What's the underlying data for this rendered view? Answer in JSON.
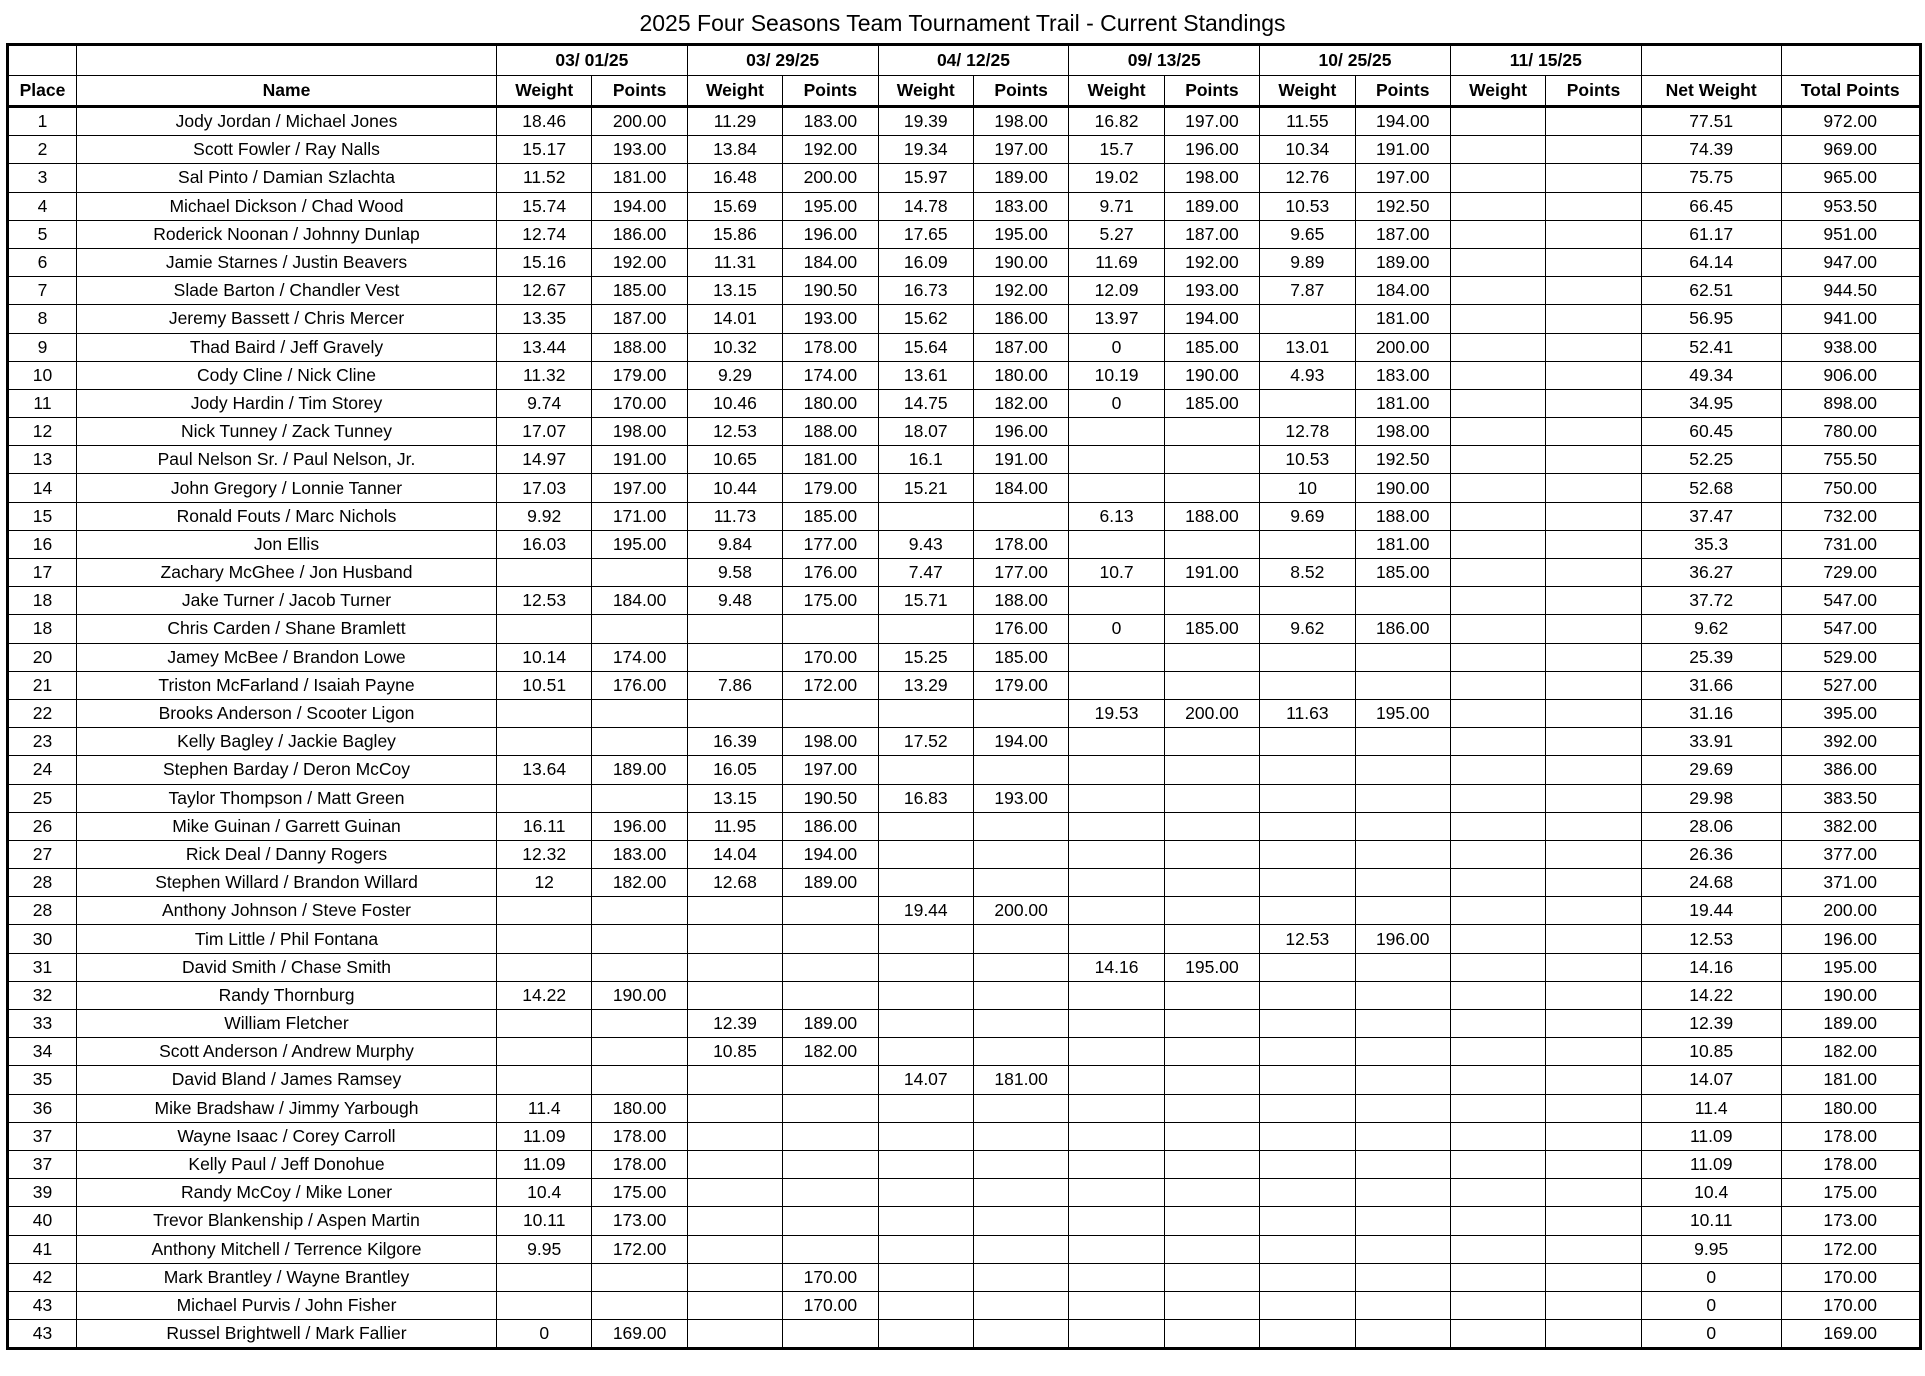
{
  "title": "2025 Four Seasons Team Tournament Trail - Current Standings",
  "events": [
    "03/ 01/25",
    "03/ 29/25",
    "04/ 12/25",
    "09/ 13/25",
    "10/ 25/25",
    "11/ 15/25"
  ],
  "headers": {
    "place": "Place",
    "name": "Name",
    "weight": "Weight",
    "points": "Points",
    "net_weight": "Net Weight",
    "total_points": "Total Points"
  },
  "rows": [
    [
      "1",
      "Jody Jordan / Michael Jones",
      "18.46",
      "200.00",
      "11.29",
      "183.00",
      "19.39",
      "198.00",
      "16.82",
      "197.00",
      "11.55",
      "194.00",
      "",
      "",
      "77.51",
      "972.00"
    ],
    [
      "2",
      "Scott Fowler / Ray Nalls",
      "15.17",
      "193.00",
      "13.84",
      "192.00",
      "19.34",
      "197.00",
      "15.7",
      "196.00",
      "10.34",
      "191.00",
      "",
      "",
      "74.39",
      "969.00"
    ],
    [
      "3",
      "Sal Pinto / Damian Szlachta",
      "11.52",
      "181.00",
      "16.48",
      "200.00",
      "15.97",
      "189.00",
      "19.02",
      "198.00",
      "12.76",
      "197.00",
      "",
      "",
      "75.75",
      "965.00"
    ],
    [
      "4",
      "Michael Dickson / Chad Wood",
      "15.74",
      "194.00",
      "15.69",
      "195.00",
      "14.78",
      "183.00",
      "9.71",
      "189.00",
      "10.53",
      "192.50",
      "",
      "",
      "66.45",
      "953.50"
    ],
    [
      "5",
      "Roderick Noonan / Johnny Dunlap",
      "12.74",
      "186.00",
      "15.86",
      "196.00",
      "17.65",
      "195.00",
      "5.27",
      "187.00",
      "9.65",
      "187.00",
      "",
      "",
      "61.17",
      "951.00"
    ],
    [
      "6",
      "Jamie Starnes / Justin Beavers",
      "15.16",
      "192.00",
      "11.31",
      "184.00",
      "16.09",
      "190.00",
      "11.69",
      "192.00",
      "9.89",
      "189.00",
      "",
      "",
      "64.14",
      "947.00"
    ],
    [
      "7",
      "Slade Barton / Chandler Vest",
      "12.67",
      "185.00",
      "13.15",
      "190.50",
      "16.73",
      "192.00",
      "12.09",
      "193.00",
      "7.87",
      "184.00",
      "",
      "",
      "62.51",
      "944.50"
    ],
    [
      "8",
      "Jeremy Bassett / Chris Mercer",
      "13.35",
      "187.00",
      "14.01",
      "193.00",
      "15.62",
      "186.00",
      "13.97",
      "194.00",
      "",
      "181.00",
      "",
      "",
      "56.95",
      "941.00"
    ],
    [
      "9",
      "Thad Baird / Jeff Gravely",
      "13.44",
      "188.00",
      "10.32",
      "178.00",
      "15.64",
      "187.00",
      "0",
      "185.00",
      "13.01",
      "200.00",
      "",
      "",
      "52.41",
      "938.00"
    ],
    [
      "10",
      "Cody Cline / Nick Cline",
      "11.32",
      "179.00",
      "9.29",
      "174.00",
      "13.61",
      "180.00",
      "10.19",
      "190.00",
      "4.93",
      "183.00",
      "",
      "",
      "49.34",
      "906.00"
    ],
    [
      "11",
      "Jody Hardin / Tim Storey",
      "9.74",
      "170.00",
      "10.46",
      "180.00",
      "14.75",
      "182.00",
      "0",
      "185.00",
      "",
      "181.00",
      "",
      "",
      "34.95",
      "898.00"
    ],
    [
      "12",
      "Nick Tunney / Zack Tunney",
      "17.07",
      "198.00",
      "12.53",
      "188.00",
      "18.07",
      "196.00",
      "",
      "",
      "12.78",
      "198.00",
      "",
      "",
      "60.45",
      "780.00"
    ],
    [
      "13",
      "Paul Nelson Sr. / Paul Nelson, Jr.",
      "14.97",
      "191.00",
      "10.65",
      "181.00",
      "16.1",
      "191.00",
      "",
      "",
      "10.53",
      "192.50",
      "",
      "",
      "52.25",
      "755.50"
    ],
    [
      "14",
      "John Gregory / Lonnie Tanner",
      "17.03",
      "197.00",
      "10.44",
      "179.00",
      "15.21",
      "184.00",
      "",
      "",
      "10",
      "190.00",
      "",
      "",
      "52.68",
      "750.00"
    ],
    [
      "15",
      "Ronald Fouts / Marc Nichols",
      "9.92",
      "171.00",
      "11.73",
      "185.00",
      "",
      "",
      "6.13",
      "188.00",
      "9.69",
      "188.00",
      "",
      "",
      "37.47",
      "732.00"
    ],
    [
      "16",
      "Jon Ellis",
      "16.03",
      "195.00",
      "9.84",
      "177.00",
      "9.43",
      "178.00",
      "",
      "",
      "",
      "181.00",
      "",
      "",
      "35.3",
      "731.00"
    ],
    [
      "17",
      "Zachary McGhee / Jon Husband",
      "",
      "",
      "9.58",
      "176.00",
      "7.47",
      "177.00",
      "10.7",
      "191.00",
      "8.52",
      "185.00",
      "",
      "",
      "36.27",
      "729.00"
    ],
    [
      "18",
      "Jake Turner / Jacob Turner",
      "12.53",
      "184.00",
      "9.48",
      "175.00",
      "15.71",
      "188.00",
      "",
      "",
      "",
      "",
      "",
      "",
      "37.72",
      "547.00"
    ],
    [
      "18",
      "Chris Carden / Shane Bramlett",
      "",
      "",
      "",
      "",
      "",
      "176.00",
      "0",
      "185.00",
      "9.62",
      "186.00",
      "",
      "",
      "9.62",
      "547.00"
    ],
    [
      "20",
      "Jamey McBee / Brandon Lowe",
      "10.14",
      "174.00",
      "",
      "170.00",
      "15.25",
      "185.00",
      "",
      "",
      "",
      "",
      "",
      "",
      "25.39",
      "529.00"
    ],
    [
      "21",
      "Triston McFarland / Isaiah Payne",
      "10.51",
      "176.00",
      "7.86",
      "172.00",
      "13.29",
      "179.00",
      "",
      "",
      "",
      "",
      "",
      "",
      "31.66",
      "527.00"
    ],
    [
      "22",
      "Brooks Anderson / Scooter Ligon",
      "",
      "",
      "",
      "",
      "",
      "",
      "19.53",
      "200.00",
      "11.63",
      "195.00",
      "",
      "",
      "31.16",
      "395.00"
    ],
    [
      "23",
      "Kelly Bagley / Jackie Bagley",
      "",
      "",
      "16.39",
      "198.00",
      "17.52",
      "194.00",
      "",
      "",
      "",
      "",
      "",
      "",
      "33.91",
      "392.00"
    ],
    [
      "24",
      "Stephen Barday / Deron McCoy",
      "13.64",
      "189.00",
      "16.05",
      "197.00",
      "",
      "",
      "",
      "",
      "",
      "",
      "",
      "",
      "29.69",
      "386.00"
    ],
    [
      "25",
      "Taylor Thompson / Matt Green",
      "",
      "",
      "13.15",
      "190.50",
      "16.83",
      "193.00",
      "",
      "",
      "",
      "",
      "",
      "",
      "29.98",
      "383.50"
    ],
    [
      "26",
      "Mike Guinan / Garrett Guinan",
      "16.11",
      "196.00",
      "11.95",
      "186.00",
      "",
      "",
      "",
      "",
      "",
      "",
      "",
      "",
      "28.06",
      "382.00"
    ],
    [
      "27",
      "Rick Deal / Danny Rogers",
      "12.32",
      "183.00",
      "14.04",
      "194.00",
      "",
      "",
      "",
      "",
      "",
      "",
      "",
      "",
      "26.36",
      "377.00"
    ],
    [
      "28",
      "Stephen Willard / Brandon Willard",
      "12",
      "182.00",
      "12.68",
      "189.00",
      "",
      "",
      "",
      "",
      "",
      "",
      "",
      "",
      "24.68",
      "371.00"
    ],
    [
      "28",
      "Anthony Johnson / Steve Foster",
      "",
      "",
      "",
      "",
      "19.44",
      "200.00",
      "",
      "",
      "",
      "",
      "",
      "",
      "19.44",
      "200.00"
    ],
    [
      "30",
      "Tim Little / Phil Fontana",
      "",
      "",
      "",
      "",
      "",
      "",
      "",
      "",
      "12.53",
      "196.00",
      "",
      "",
      "12.53",
      "196.00"
    ],
    [
      "31",
      "David Smith / Chase Smith",
      "",
      "",
      "",
      "",
      "",
      "",
      "14.16",
      "195.00",
      "",
      "",
      "",
      "",
      "14.16",
      "195.00"
    ],
    [
      "32",
      "Randy Thornburg",
      "14.22",
      "190.00",
      "",
      "",
      "",
      "",
      "",
      "",
      "",
      "",
      "",
      "",
      "14.22",
      "190.00"
    ],
    [
      "33",
      "William Fletcher",
      "",
      "",
      "12.39",
      "189.00",
      "",
      "",
      "",
      "",
      "",
      "",
      "",
      "",
      "12.39",
      "189.00"
    ],
    [
      "34",
      "Scott Anderson / Andrew Murphy",
      "",
      "",
      "10.85",
      "182.00",
      "",
      "",
      "",
      "",
      "",
      "",
      "",
      "",
      "10.85",
      "182.00"
    ],
    [
      "35",
      "David Bland / James Ramsey",
      "",
      "",
      "",
      "",
      "14.07",
      "181.00",
      "",
      "",
      "",
      "",
      "",
      "",
      "14.07",
      "181.00"
    ],
    [
      "36",
      "Mike Bradshaw / Jimmy Yarbough",
      "11.4",
      "180.00",
      "",
      "",
      "",
      "",
      "",
      "",
      "",
      "",
      "",
      "",
      "11.4",
      "180.00"
    ],
    [
      "37",
      "Wayne Isaac / Corey Carroll",
      "11.09",
      "178.00",
      "",
      "",
      "",
      "",
      "",
      "",
      "",
      "",
      "",
      "",
      "11.09",
      "178.00"
    ],
    [
      "37",
      "Kelly Paul / Jeff Donohue",
      "11.09",
      "178.00",
      "",
      "",
      "",
      "",
      "",
      "",
      "",
      "",
      "",
      "",
      "11.09",
      "178.00"
    ],
    [
      "39",
      "Randy McCoy / Mike Loner",
      "10.4",
      "175.00",
      "",
      "",
      "",
      "",
      "",
      "",
      "",
      "",
      "",
      "",
      "10.4",
      "175.00"
    ],
    [
      "40",
      "Trevor Blankenship / Aspen Martin",
      "10.11",
      "173.00",
      "",
      "",
      "",
      "",
      "",
      "",
      "",
      "",
      "",
      "",
      "10.11",
      "173.00"
    ],
    [
      "41",
      "Anthony Mitchell / Terrence Kilgore",
      "9.95",
      "172.00",
      "",
      "",
      "",
      "",
      "",
      "",
      "",
      "",
      "",
      "",
      "9.95",
      "172.00"
    ],
    [
      "42",
      "Mark Brantley / Wayne Brantley",
      "",
      "",
      "",
      "170.00",
      "",
      "",
      "",
      "",
      "",
      "",
      "",
      "",
      "0",
      "170.00"
    ],
    [
      "43",
      "Michael Purvis / John Fisher",
      "",
      "",
      "",
      "170.00",
      "",
      "",
      "",
      "",
      "",
      "",
      "",
      "",
      "0",
      "170.00"
    ],
    [
      "43",
      "Russel Brightwell / Mark Fallier",
      "0",
      "169.00",
      "",
      "",
      "",
      "",
      "",
      "",
      "",
      "",
      "",
      "",
      "0",
      "169.00"
    ]
  ]
}
